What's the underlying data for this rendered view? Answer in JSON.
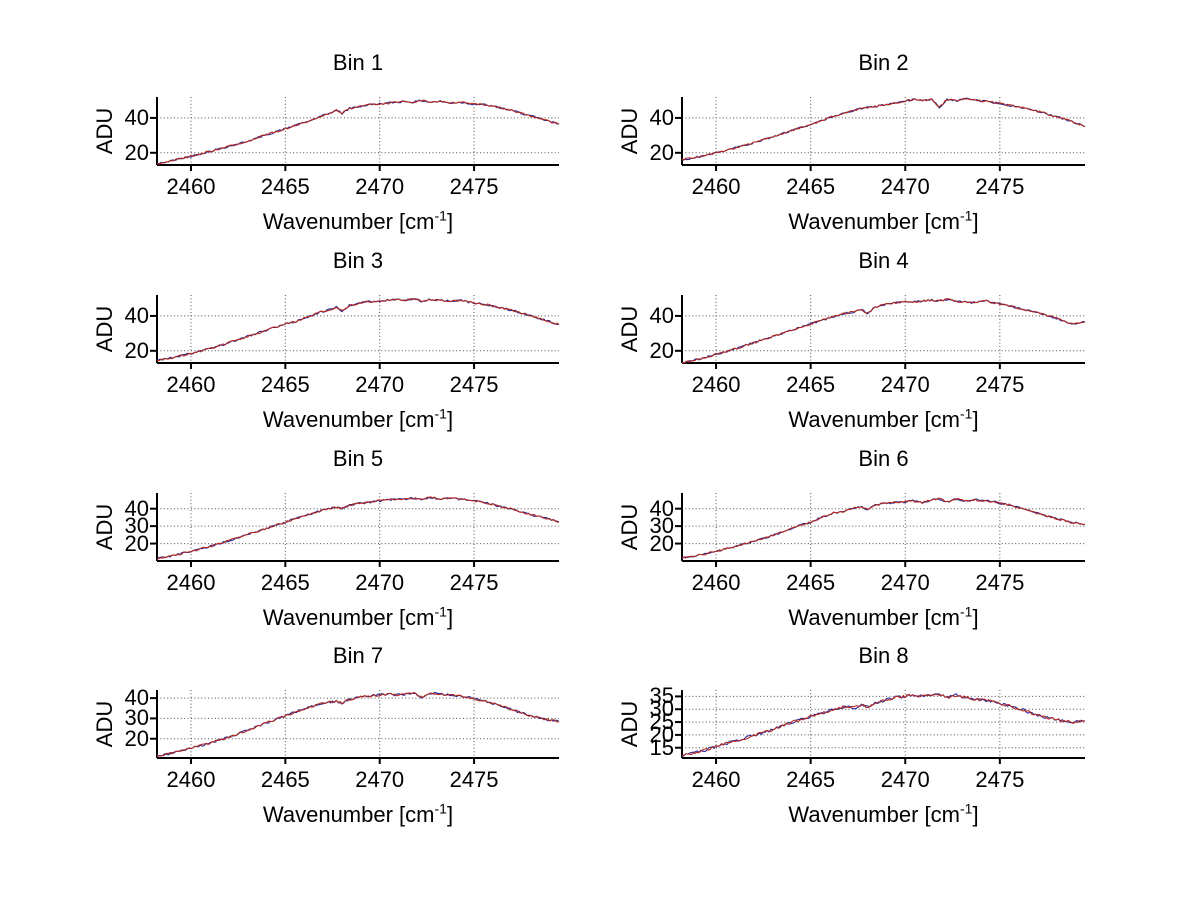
{
  "figure": {
    "ylabel": "ADU",
    "xlabel": {
      "prefix": "Wavenumber [cm",
      "sup": "-1",
      "suffix": "]"
    },
    "colors": {
      "background": "#ffffff",
      "axis": "#000000",
      "grid": "#4d4d4d",
      "trace_blue": "#2a2a9a",
      "trace_red": "#b52a1e"
    }
  },
  "chart_data": {
    "type": "line",
    "layout": "4x2 subplot grid",
    "grid": true,
    "legend": "none",
    "xlabel": "Wavenumber [cm^-1]",
    "ylabel": "ADU",
    "xlim": [
      2458.2,
      2479.5
    ],
    "xticks": [
      2460,
      2465,
      2470,
      2475
    ],
    "series": [
      {
        "name": "spectrum-trace-blue",
        "color": "#2a2a9a"
      },
      {
        "name": "spectrum-trace-red",
        "color": "#b52a1e"
      }
    ],
    "series_note": "two nearly identical noisy traces overplotted in every panel (blue under red)",
    "noise_amplitude": 0.55,
    "noise_seed": 42,
    "x": [
      2458.2,
      2458.8,
      2459.4,
      2460.0,
      2460.7,
      2461.4,
      2462.1,
      2462.8,
      2463.5,
      2464.2,
      2464.9,
      2465.6,
      2466.2,
      2466.8,
      2467.3,
      2467.7,
      2468.0,
      2468.4,
      2468.9,
      2469.4,
      2469.9,
      2470.4,
      2470.9,
      2471.4,
      2471.8,
      2472.2,
      2472.7,
      2473.2,
      2473.7,
      2474.3,
      2474.9,
      2475.6,
      2476.3,
      2477.1,
      2477.9,
      2478.8,
      2479.5
    ],
    "subplots": [
      {
        "title": "Bin 1",
        "ylim": [
          13,
          52
        ],
        "yticks": [
          20,
          40
        ],
        "y": [
          13.5,
          15,
          16.5,
          18,
          20,
          22,
          24,
          26,
          28.5,
          31,
          33.5,
          36,
          38,
          40.5,
          42.5,
          44.5,
          42.5,
          45.5,
          46.5,
          47.5,
          48,
          48.5,
          49,
          49.5,
          49,
          50,
          49,
          49.5,
          48.5,
          49,
          48,
          47.5,
          46,
          44,
          41.5,
          38.5,
          36.5
        ]
      },
      {
        "title": "Bin 2",
        "ylim": [
          13,
          52
        ],
        "yticks": [
          20,
          40
        ],
        "y": [
          16,
          17,
          18.5,
          20,
          22,
          24,
          26,
          28.5,
          31,
          33.5,
          36,
          38.5,
          41,
          43,
          44.5,
          45.5,
          46,
          46.5,
          47.5,
          48.5,
          49.5,
          50.5,
          50,
          51,
          46,
          50.5,
          50,
          51,
          50,
          49.5,
          48.5,
          47,
          45.5,
          43.5,
          41,
          38,
          35
        ]
      },
      {
        "title": "Bin 3",
        "ylim": [
          13,
          52
        ],
        "yticks": [
          20,
          40
        ],
        "y": [
          14.5,
          15.5,
          17,
          18.5,
          20.5,
          22.5,
          25,
          27.5,
          30,
          32.5,
          35,
          37,
          39.5,
          42,
          43.5,
          45,
          43,
          46,
          47,
          48.5,
          48,
          49,
          49.5,
          49,
          50,
          48.5,
          49.5,
          49,
          48.5,
          49,
          47.5,
          46.5,
          45,
          43,
          40.5,
          37.5,
          35
        ]
      },
      {
        "title": "Bin 4",
        "ylim": [
          13,
          52
        ],
        "yticks": [
          20,
          40
        ],
        "y": [
          13,
          14.5,
          16,
          18,
          20,
          22.5,
          25,
          27.5,
          30,
          32.5,
          35,
          37.5,
          39.5,
          41.5,
          42.5,
          43.5,
          41.5,
          45,
          46.5,
          47.5,
          48,
          48,
          48.5,
          49,
          48.5,
          49.5,
          48.5,
          48,
          47.5,
          48.5,
          47,
          45.5,
          43.5,
          41.5,
          39,
          35.5,
          36.5
        ]
      },
      {
        "title": "Bin 5",
        "ylim": [
          10,
          49
        ],
        "yticks": [
          20,
          30,
          40
        ],
        "y": [
          11.5,
          12.5,
          14,
          15.5,
          17.5,
          19.5,
          22,
          24.5,
          27,
          29.5,
          32,
          34.5,
          36.5,
          38.5,
          40,
          41,
          40,
          42,
          43,
          43.5,
          44.5,
          45,
          45.5,
          45.5,
          46,
          45.5,
          46.5,
          45.5,
          46,
          45.5,
          44.5,
          43.5,
          41.5,
          39.5,
          37,
          34.5,
          32.5
        ]
      },
      {
        "title": "Bin 6",
        "ylim": [
          10,
          49
        ],
        "yticks": [
          20,
          30,
          40
        ],
        "y": [
          11.5,
          12.5,
          14,
          15.5,
          17.5,
          19.5,
          21.5,
          24,
          26.5,
          29.5,
          32,
          35,
          37.5,
          38.5,
          40.5,
          41,
          39.5,
          42,
          43,
          43.5,
          44,
          44.5,
          43.5,
          45,
          45.5,
          44,
          45.5,
          44.5,
          45,
          44.5,
          43.5,
          42,
          39.5,
          37,
          34.5,
          32,
          31
        ]
      },
      {
        "title": "Bin 7",
        "ylim": [
          10.5,
          44
        ],
        "yticks": [
          20,
          30,
          40
        ],
        "y": [
          11.5,
          12.5,
          14,
          15.5,
          17,
          19,
          21,
          23.5,
          26,
          28.5,
          31,
          33.5,
          35.5,
          37,
          38,
          38.5,
          37.5,
          39.5,
          40.5,
          41,
          41.5,
          42,
          41.5,
          42,
          42.5,
          40.5,
          42.5,
          42,
          41.5,
          41,
          40,
          38.5,
          36.5,
          34,
          31.5,
          29.5,
          28.5
        ]
      },
      {
        "title": "Bin 8",
        "ylim": [
          11,
          37.5
        ],
        "yticks": [
          15,
          20,
          25,
          30,
          35
        ],
        "y": [
          12,
          13,
          14,
          15.5,
          17,
          18.5,
          20,
          21.5,
          23.5,
          25.5,
          27,
          28.5,
          30,
          31,
          30.5,
          32,
          31,
          32.5,
          33.5,
          34.5,
          35,
          35.5,
          35,
          35.5,
          36,
          34.5,
          35.5,
          34.5,
          34,
          33.5,
          32.5,
          31,
          29.5,
          27.5,
          26,
          25,
          25.5
        ]
      }
    ]
  }
}
